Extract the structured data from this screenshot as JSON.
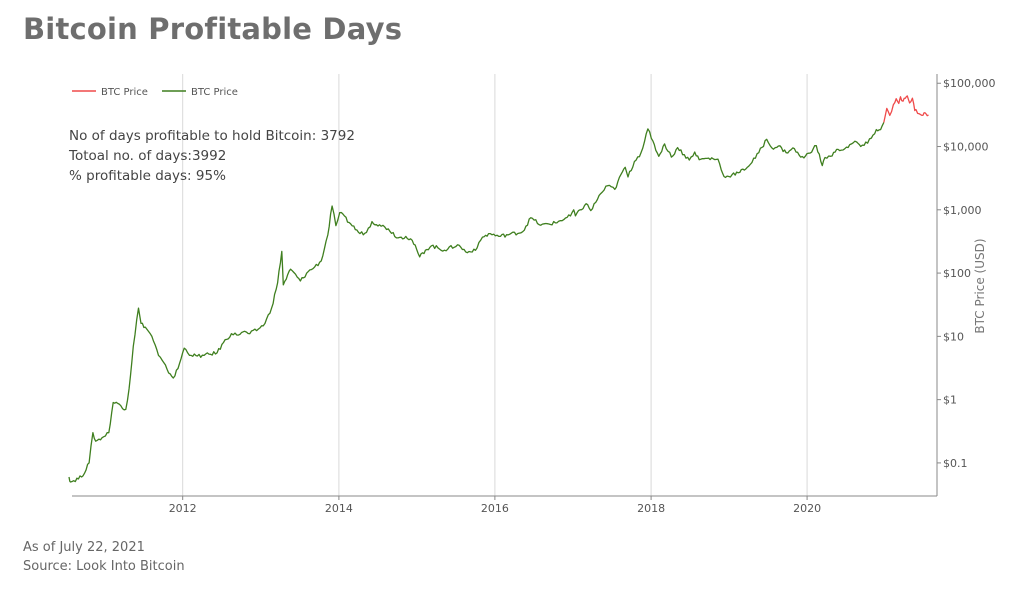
{
  "title": "Bitcoin Profitable Days",
  "footer": {
    "as_of": "As of July 22, 2021",
    "source": "Source: Look Into Bitcoin"
  },
  "colors": {
    "profitable": "#3f7f1f",
    "unprofitable": "#ef4a4a",
    "grid": "#d9d9d9",
    "axis": "#888888",
    "text": "#555555"
  },
  "chart_data": {
    "type": "line",
    "title": "",
    "xlabel": "",
    "ylabel": "BTC Price (USD)",
    "y_scale": "log",
    "ylim": [
      0.03,
      140000
    ],
    "xlim": [
      "2010-08-01",
      "2021-08-31"
    ],
    "x_ticks": [
      "2012",
      "2014",
      "2016",
      "2018",
      "2020"
    ],
    "y_ticks": [
      {
        "value": 0.1,
        "label": "$0.1"
      },
      {
        "value": 1,
        "label": "$1"
      },
      {
        "value": 10,
        "label": "$10"
      },
      {
        "value": 100,
        "label": "$100"
      },
      {
        "value": 1000,
        "label": "$1,000"
      },
      {
        "value": 10000,
        "label": "$10,000"
      },
      {
        "value": 100000,
        "label": "$100,000"
      }
    ],
    "grid": "vertical",
    "legend_position": "top-left",
    "annotations": [
      "No of days profitable to hold Bitcoin: 3792",
      "Totoal no. of days:3992",
      "% profitable days: 95%"
    ],
    "series": [
      {
        "name": "BTC Price",
        "color": "#ef4a4a",
        "x": [
          "2020-12-25",
          "2021-01-08",
          "2021-01-22",
          "2021-02-08",
          "2021-02-21",
          "2021-03-05",
          "2021-03-13",
          "2021-03-25",
          "2021-04-05",
          "2021-04-14",
          "2021-04-25",
          "2021-05-08",
          "2021-05-19",
          "2021-05-25",
          "2021-06-08",
          "2021-06-22",
          "2021-07-01",
          "2021-07-10",
          "2021-07-22"
        ],
        "values": [
          24000,
          40000,
          31000,
          46000,
          57000,
          48000,
          61000,
          52000,
          58000,
          63000,
          49000,
          58000,
          37000,
          38000,
          33000,
          31000,
          34000,
          33000,
          31500
        ]
      },
      {
        "name": "BTC Price",
        "color": "#3f7f1f",
        "x": [
          "2010-07-18",
          "2010-07-25",
          "2010-09-15",
          "2010-10-20",
          "2010-11-07",
          "2010-11-20",
          "2010-12-20",
          "2011-01-20",
          "2011-02-10",
          "2011-03-10",
          "2011-04-10",
          "2011-04-25",
          "2011-05-15",
          "2011-06-08",
          "2011-06-20",
          "2011-07-10",
          "2011-08-10",
          "2011-09-10",
          "2011-10-20",
          "2011-11-18",
          "2011-12-10",
          "2012-01-08",
          "2012-02-10",
          "2012-03-10",
          "2012-04-10",
          "2012-06-10",
          "2012-07-10",
          "2012-08-16",
          "2012-09-10",
          "2012-10-10",
          "2012-11-10",
          "2012-12-20",
          "2013-01-20",
          "2013-02-20",
          "2013-03-20",
          "2013-04-09",
          "2013-04-16",
          "2013-05-20",
          "2013-07-05",
          "2013-08-10",
          "2013-09-10",
          "2013-10-10",
          "2013-11-10",
          "2013-11-30",
          "2013-12-18",
          "2014-01-05",
          "2014-02-25",
          "2014-04-10",
          "2014-05-10",
          "2014-06-05",
          "2014-07-10",
          "2014-08-20",
          "2014-10-05",
          "2014-11-10",
          "2014-12-10",
          "2015-01-14",
          "2015-02-10",
          "2015-03-10",
          "2015-05-10",
          "2015-07-10",
          "2015-08-25",
          "2015-10-10",
          "2015-11-04",
          "2015-12-10",
          "2016-01-20",
          "2016-03-10",
          "2016-05-10",
          "2016-06-17",
          "2016-08-03",
          "2016-10-10",
          "2016-12-20",
          "2017-01-04",
          "2017-01-12",
          "2017-03-03",
          "2017-03-25",
          "2017-05-10",
          "2017-06-12",
          "2017-07-15",
          "2017-08-20",
          "2017-09-02",
          "2017-09-15",
          "2017-10-15",
          "2017-11-15",
          "2017-12-17",
          "2018-01-02",
          "2018-02-06",
          "2018-03-05",
          "2018-04-06",
          "2018-05-05",
          "2018-06-29",
          "2018-07-24",
          "2018-08-14",
          "2018-09-20",
          "2018-11-10",
          "2018-11-25",
          "2018-12-15",
          "2019-01-15",
          "2019-02-20",
          "2019-04-10",
          "2019-05-20",
          "2019-06-26",
          "2019-07-20",
          "2019-08-20",
          "2019-09-25",
          "2019-10-26",
          "2019-11-25",
          "2019-12-17",
          "2020-02-13",
          "2020-03-12",
          "2020-03-25",
          "2020-04-20",
          "2020-05-25",
          "2020-06-25",
          "2020-07-27",
          "2020-08-20",
          "2020-09-08",
          "2020-10-10",
          "2020-10-28",
          "2020-11-20",
          "2020-12-10",
          "2020-12-25"
        ],
        "values": [
          0.06,
          0.05,
          0.06,
          0.1,
          0.3,
          0.22,
          0.25,
          0.3,
          0.9,
          0.85,
          0.7,
          1.5,
          7,
          28,
          16,
          14,
          10,
          5,
          3,
          2.2,
          3.1,
          6.5,
          5,
          4.9,
          5,
          5.5,
          8,
          11,
          10.5,
          11.8,
          11,
          13,
          16,
          28,
          70,
          220,
          65,
          115,
          75,
          105,
          125,
          155,
          400,
          1150,
          560,
          900,
          600,
          420,
          440,
          650,
          580,
          500,
          360,
          380,
          330,
          180,
          230,
          270,
          230,
          280,
          210,
          250,
          370,
          420,
          380,
          410,
          450,
          750,
          570,
          620,
          800,
          1000,
          800,
          1250,
          970,
          1800,
          2400,
          2100,
          4000,
          4700,
          3300,
          5800,
          8000,
          19000,
          13500,
          7000,
          11000,
          6800,
          9600,
          6100,
          8200,
          6200,
          6500,
          6300,
          4300,
          3250,
          3600,
          3900,
          5200,
          8000,
          13000,
          9500,
          10200,
          8000,
          9500,
          7300,
          6600,
          10300,
          5000,
          6700,
          7000,
          9000,
          9200,
          11000,
          11800,
          10000,
          11300,
          13600,
          18500,
          18500,
          24000
        ]
      }
    ]
  }
}
